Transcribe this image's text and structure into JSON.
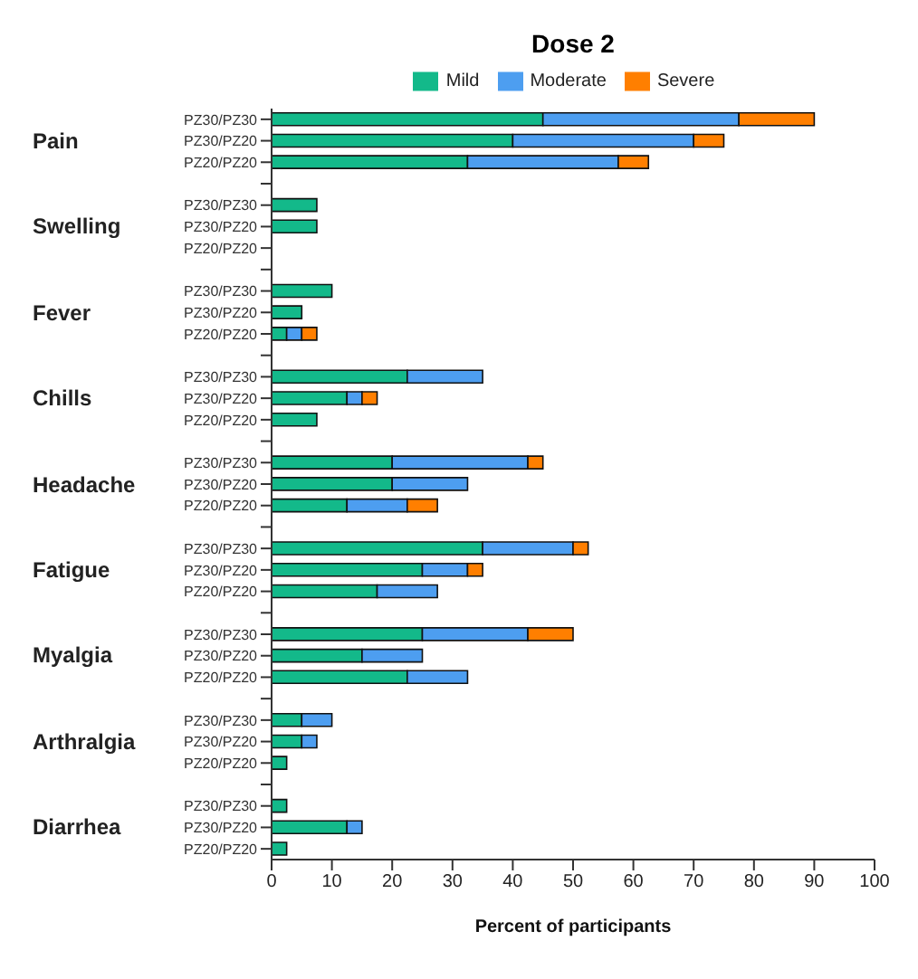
{
  "chart_data": {
    "type": "bar",
    "orientation": "horizontal",
    "stacked": true,
    "title": "Dose 2",
    "xlabel": "Percent of participants",
    "categories": [
      "PZ30/PZ30",
      "PZ30/PZ20",
      "PZ20/PZ20",
      "PZ30/PZ30",
      "PZ30/PZ20",
      "PZ20/PZ20",
      "PZ30/PZ30",
      "PZ30/PZ20",
      "PZ20/PZ20",
      "PZ30/PZ30",
      "PZ30/PZ20",
      "PZ20/PZ20",
      "PZ30/PZ30",
      "PZ30/PZ20",
      "PZ20/PZ20",
      "PZ30/PZ30",
      "PZ30/PZ20",
      "PZ20/PZ20",
      "PZ30/PZ30",
      "PZ30/PZ20",
      "PZ20/PZ20",
      "PZ30/PZ30",
      "PZ30/PZ20",
      "PZ20/PZ20",
      "PZ30/PZ30",
      "PZ30/PZ20",
      "PZ20/PZ20"
    ],
    "annotations": [
      "Pain",
      "Swelling",
      "Fever",
      "Chills",
      "Headache",
      "Fatigue",
      "Myalgia",
      "Arthralgia",
      "Diarrhea"
    ],
    "series": [
      {
        "name": "Mild",
        "color": "#13b98a",
        "values": [
          45,
          40,
          32.5,
          7.5,
          7.5,
          0,
          10,
          5,
          2.5,
          22.5,
          12.5,
          7.5,
          20,
          20,
          12.5,
          35,
          25,
          17.5,
          25,
          15,
          22.5,
          5,
          5,
          2.5,
          2.5,
          12.5,
          2.5
        ]
      },
      {
        "name": "Moderate",
        "color": "#4d9ef0",
        "values": [
          32.5,
          30,
          25,
          0,
          0,
          0,
          0,
          0,
          2.5,
          12.5,
          2.5,
          0,
          22.5,
          12.5,
          10,
          15,
          7.5,
          10,
          17.5,
          10,
          10,
          5,
          2.5,
          0,
          0,
          2.5,
          0
        ]
      },
      {
        "name": "Severe",
        "color": "#ff7f00",
        "values": [
          12.5,
          5,
          5,
          0,
          0,
          0,
          0,
          0,
          2.5,
          0,
          2.5,
          0,
          2.5,
          0,
          5,
          2.5,
          2.5,
          0,
          7.5,
          0,
          0,
          0,
          0,
          0,
          0,
          0,
          0
        ]
      }
    ],
    "xlim": [
      0,
      100
    ],
    "xticks": [
      0,
      10,
      20,
      30,
      40,
      50,
      60,
      70,
      80,
      90,
      100
    ],
    "legend": "top"
  }
}
